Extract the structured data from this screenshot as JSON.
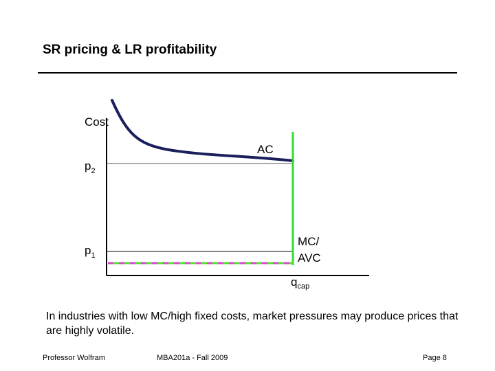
{
  "slide": {
    "title": "SR pricing & LR profitability",
    "caption": "In industries with low MC/high fixed costs, market pressures may produce prices that are highly volatile."
  },
  "diagram": {
    "y_axis_label": "Cost",
    "price_high": {
      "base": "p",
      "sub": "2"
    },
    "price_low": {
      "base": "p",
      "sub": "1"
    },
    "ac_label": "AC",
    "mc_label_line1": "MC/",
    "mc_label_line2": "AVC",
    "capacity_label": {
      "base": "q",
      "sub": "cap"
    },
    "colors": {
      "axis": "#000000",
      "ac_curve": "#1a1f5c",
      "mc_vertical": "#33dd33",
      "mc_dash_green": "#55dd33",
      "mc_dash_magenta": "#d24bc8",
      "price_line": "#000000"
    }
  },
  "footer": {
    "left": "Professor Wolfram",
    "center": "MBA201a - Fall 2009",
    "right": "Page 8"
  }
}
